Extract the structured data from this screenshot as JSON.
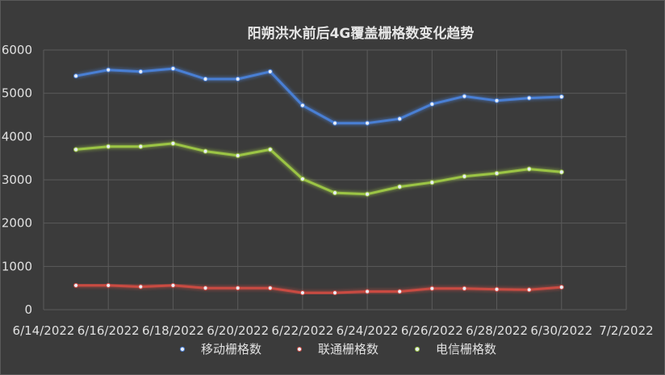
{
  "chart_data": {
    "type": "line",
    "title": "阳朔洪水前后4G覆盖栅格数变化趋势",
    "xlabel": "",
    "ylabel": "",
    "x_ticks": [
      "6/14/2022",
      "6/16/2022",
      "6/18/2022",
      "6/20/2022",
      "6/22/2022",
      "6/24/2022",
      "6/26/2022",
      "6/28/2022",
      "6/30/2022",
      "7/2/2022"
    ],
    "xlim": [
      "2022-06-14",
      "2022-07-02"
    ],
    "y_ticks": [
      "0",
      "1000",
      "2000",
      "3000",
      "4000",
      "5000",
      "6000"
    ],
    "ylim": [
      0,
      6000
    ],
    "grid": true,
    "legend_position": "bottom",
    "x": [
      "2022-06-15",
      "2022-06-16",
      "2022-06-17",
      "2022-06-18",
      "2022-06-19",
      "2022-06-20",
      "2022-06-21",
      "2022-06-22",
      "2022-06-23",
      "2022-06-24",
      "2022-06-25",
      "2022-06-26",
      "2022-06-27",
      "2022-06-28",
      "2022-06-29",
      "2022-06-30"
    ],
    "series": [
      {
        "name": "移动栅格数",
        "color": "#4a7fd4",
        "values": [
          5400,
          5540,
          5500,
          5570,
          5330,
          5330,
          5500,
          4720,
          4310,
          4310,
          4410,
          4750,
          4930,
          4830,
          4890,
          4920
        ]
      },
      {
        "name": "联通栅格数",
        "color": "#c94b43",
        "values": [
          560,
          560,
          530,
          560,
          500,
          500,
          500,
          390,
          390,
          420,
          420,
          490,
          490,
          470,
          460,
          520
        ]
      },
      {
        "name": "电信栅格数",
        "color": "#9bc445",
        "values": [
          3700,
          3770,
          3770,
          3840,
          3660,
          3560,
          3700,
          3020,
          2700,
          2670,
          2840,
          2940,
          3080,
          3150,
          3250,
          3180
        ]
      }
    ]
  }
}
